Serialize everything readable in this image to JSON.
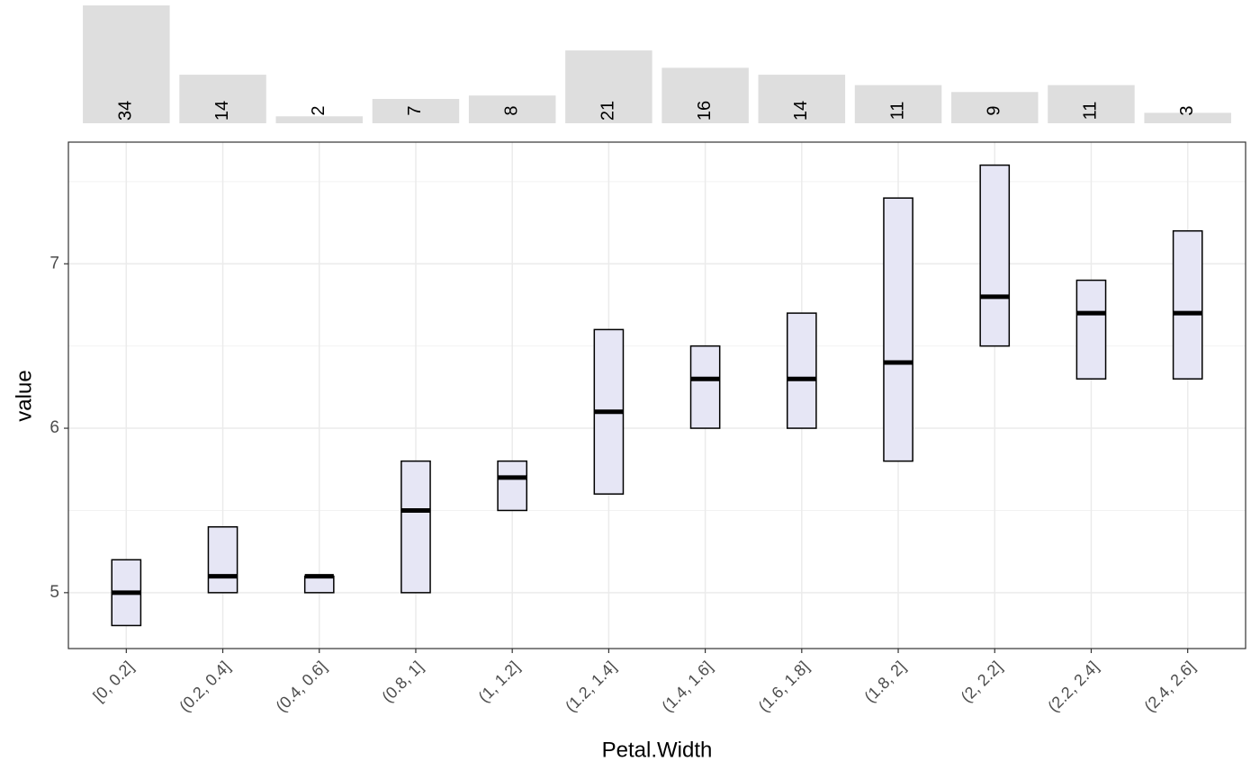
{
  "chart_data": [
    {
      "type": "bar",
      "values": [
        34,
        14,
        2,
        7,
        8,
        21,
        16,
        14,
        11,
        9,
        11,
        3
      ],
      "color": "#dedede"
    },
    {
      "type": "crossbar",
      "x_label": "Petal.Width",
      "y_label": "value",
      "categories": [
        "[0, 0.2]",
        "(0.2, 0.4]",
        "(0.4, 0.6]",
        "(0.8, 1]",
        "(1, 1.2]",
        "(1.2, 1.4]",
        "(1.4, 1.6]",
        "(1.6, 1.8]",
        "(1.8, 2]",
        "(2, 2.2]",
        "(2.2, 2.4]",
        "(2.4, 2.6]"
      ],
      "lower": [
        4.8,
        5.0,
        5.0,
        5.0,
        5.5,
        5.6,
        6.0,
        6.0,
        5.8,
        6.5,
        6.3,
        6.3
      ],
      "middle": [
        5.0,
        5.1,
        5.1,
        5.5,
        5.7,
        6.1,
        6.3,
        6.3,
        6.4,
        6.8,
        6.7,
        6.7
      ],
      "upper": [
        5.2,
        5.4,
        5.1,
        5.8,
        5.8,
        6.6,
        6.5,
        6.7,
        7.4,
        7.6,
        6.9,
        7.2
      ],
      "fill": "#e6e6f5",
      "ylim": [
        4.66,
        7.74
      ],
      "yticks": [
        5,
        6,
        7
      ],
      "minor_yticks": [
        5.5,
        6.5,
        7.5
      ],
      "grid": true
    }
  ]
}
